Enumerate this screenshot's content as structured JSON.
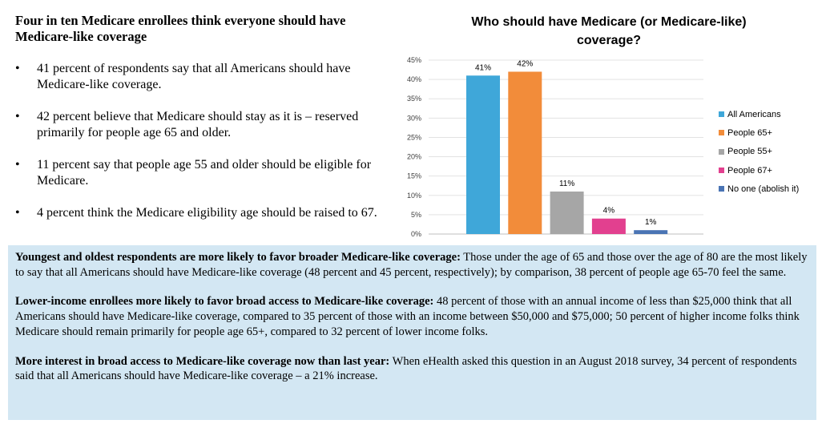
{
  "left": {
    "title": "Four in ten Medicare enrollees think everyone should have Medicare-like coverage",
    "bullet_char": "•",
    "bullets": [
      "41 percent of respondents say that all Americans should have Medicare-like coverage.",
      "42 percent believe that Medicare should stay as it is – reserved primarily for people age 65 and older.",
      "11 percent say that people age 55 and older should be eligible for Medicare.",
      "4 percent think the Medicare eligibility age should be raised to 67."
    ]
  },
  "chart_data": {
    "type": "bar",
    "title": "Who should have Medicare (or Medicare-like) coverage?",
    "categories": [
      "All Americans",
      "People 65+",
      "People 55+",
      "People 67+",
      "No one (abolish it)"
    ],
    "values": [
      41,
      42,
      11,
      4,
      1
    ],
    "data_labels": [
      "41%",
      "42%",
      "11%",
      "4%",
      "1%"
    ],
    "colors": [
      "#3fa7d9",
      "#f28c3a",
      "#a6a6a6",
      "#e2408f",
      "#4a74b4"
    ],
    "ylim": [
      0,
      45
    ],
    "yticks": [
      "0%",
      "5%",
      "10%",
      "15%",
      "20%",
      "25%",
      "30%",
      "35%",
      "40%",
      "45%"
    ],
    "ytick_values": [
      0,
      5,
      10,
      15,
      20,
      25,
      30,
      35,
      40,
      45
    ],
    "legend": "right",
    "grid": true
  },
  "panel": {
    "paragraphs": [
      {
        "bold": "Youngest and oldest respondents are more likely to favor broader Medicare-like coverage:",
        "text": " Those under the age of 65 and those over the age of 80 are the most likely to say that all Americans should have Medicare-like coverage (48 percent and 45 percent, respectively); by comparison, 38 percent of people age 65-70 feel the same."
      },
      {
        "bold": "Lower-income enrollees more likely to favor broad access to Medicare-like coverage:",
        "text": " 48 percent of those with an annual income of less than $25,000 think that all Americans should have Medicare-like coverage, compared to 35 percent of those with an income between $50,000 and $75,000; 50 percent of higher income folks think Medicare should remain primarily for people age 65+, compared to 32 percent of lower income folks."
      },
      {
        "bold": "More interest in broad access to Medicare-like coverage now than last year:",
        "text": " When eHealth asked this question in an August 2018 survey, 34 percent of respondents said that all Americans should have Medicare-like coverage – a 21% increase."
      }
    ]
  }
}
